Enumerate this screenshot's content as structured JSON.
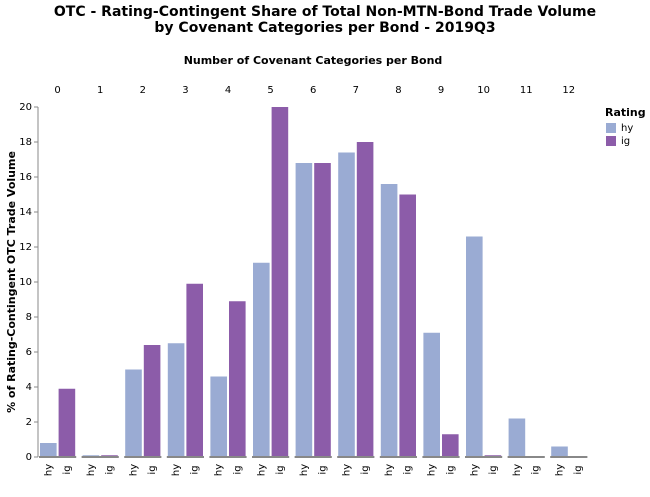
{
  "chart_data": {
    "type": "bar",
    "title": [
      "OTC - Rating-Contingent Share of Total Non-MTN-Bond Trade Volume",
      "by Covenant Categories per Bond - 2019Q3"
    ],
    "x_label": "Number of Covenant Categories per Bond",
    "y_label": "% of Rating-Contingent OTC Trade Volume",
    "legend_title": "Rating",
    "legend_position": "right",
    "categories": [
      "0",
      "1",
      "2",
      "3",
      "4",
      "5",
      "6",
      "7",
      "8",
      "9",
      "10",
      "11",
      "12"
    ],
    "series": [
      {
        "name": "hy",
        "color": "#9aabd3",
        "values": [
          0.8,
          0.1,
          5.0,
          6.5,
          4.6,
          11.1,
          16.8,
          17.4,
          15.6,
          7.1,
          12.6,
          2.2,
          0.6
        ]
      },
      {
        "name": "ig",
        "color": "#8c5ca9",
        "values": [
          3.9,
          0.1,
          6.4,
          9.9,
          8.9,
          20.0,
          16.8,
          18.0,
          15.0,
          1.3,
          0.1,
          0.05,
          0.0
        ]
      }
    ],
    "ylim": [
      0,
      20
    ],
    "yticks": [
      0,
      2,
      4,
      6,
      8,
      10,
      12,
      14,
      16,
      18,
      20
    ],
    "grid": false
  }
}
